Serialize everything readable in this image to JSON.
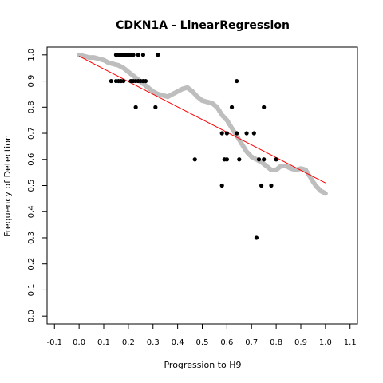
{
  "chart_data": {
    "type": "scatter",
    "title": "CDKN1A - LinearRegression",
    "xlabel": "Progression to H9",
    "ylabel": "Frequency of Detection",
    "xlim": [
      -0.13,
      1.13
    ],
    "ylim": [
      -0.03,
      1.03
    ],
    "x_ticks": [
      "-0.1",
      "0.0",
      "0.1",
      "0.2",
      "0.3",
      "0.4",
      "0.5",
      "0.6",
      "0.7",
      "0.8",
      "0.9",
      "1.0",
      "1.1"
    ],
    "y_ticks": [
      "0.0",
      "0.1",
      "0.2",
      "0.3",
      "0.4",
      "0.5",
      "0.6",
      "0.7",
      "0.8",
      "0.9",
      "1.0"
    ],
    "grid": false,
    "legend": "none",
    "colors": {
      "observed": "#000000",
      "smoothed": "#bebebe",
      "fit": "#ff0000"
    },
    "series": [
      {
        "role": "smoothed",
        "x": [
          0.0,
          0.02,
          0.04,
          0.06,
          0.08,
          0.1,
          0.12,
          0.14,
          0.16,
          0.18,
          0.2,
          0.22,
          0.24,
          0.26,
          0.28,
          0.3,
          0.32,
          0.34,
          0.36,
          0.38,
          0.4,
          0.42,
          0.44,
          0.46,
          0.48,
          0.5,
          0.52,
          0.54,
          0.56,
          0.58,
          0.6,
          0.62,
          0.64,
          0.66,
          0.68,
          0.7,
          0.72,
          0.74,
          0.76,
          0.78,
          0.8,
          0.82,
          0.84,
          0.86,
          0.88,
          0.9,
          0.92,
          0.94,
          0.96,
          0.98,
          1.0
        ],
        "y": [
          1.0,
          0.995,
          0.99,
          0.99,
          0.985,
          0.98,
          0.97,
          0.965,
          0.96,
          0.95,
          0.935,
          0.92,
          0.905,
          0.89,
          0.875,
          0.86,
          0.85,
          0.845,
          0.84,
          0.85,
          0.86,
          0.87,
          0.875,
          0.86,
          0.84,
          0.825,
          0.82,
          0.815,
          0.8,
          0.77,
          0.75,
          0.72,
          0.69,
          0.66,
          0.63,
          0.61,
          0.6,
          0.59,
          0.575,
          0.56,
          0.56,
          0.575,
          0.575,
          0.565,
          0.56,
          0.565,
          0.56,
          0.53,
          0.5,
          0.48,
          0.47
        ]
      },
      {
        "role": "observed",
        "x": [
          0.13,
          0.15,
          0.155,
          0.16,
          0.165,
          0.17,
          0.18,
          0.19,
          0.2,
          0.21,
          0.22,
          0.24,
          0.26,
          0.32,
          0.15,
          0.16,
          0.17,
          0.18,
          0.21,
          0.22,
          0.23,
          0.24,
          0.25,
          0.26,
          0.27,
          0.64,
          0.23,
          0.31,
          0.62,
          0.75,
          0.58,
          0.6,
          0.64,
          0.68,
          0.71,
          0.47,
          0.59,
          0.6,
          0.65,
          0.73,
          0.75,
          0.8,
          0.58,
          0.74,
          0.78,
          0.72
        ],
        "y": [
          0.9,
          1.0,
          1.0,
          1.0,
          1.0,
          1.0,
          1.0,
          1.0,
          1.0,
          1.0,
          1.0,
          1.0,
          1.0,
          1.0,
          0.9,
          0.9,
          0.9,
          0.9,
          0.9,
          0.9,
          0.9,
          0.9,
          0.9,
          0.9,
          0.9,
          0.9,
          0.8,
          0.8,
          0.8,
          0.8,
          0.7,
          0.7,
          0.7,
          0.7,
          0.7,
          0.6,
          0.6,
          0.6,
          0.6,
          0.6,
          0.6,
          0.6,
          0.5,
          0.5,
          0.5,
          0.3
        ]
      },
      {
        "role": "fit",
        "x": [
          0.0,
          1.0
        ],
        "y": [
          0.995,
          0.51
        ]
      }
    ]
  }
}
